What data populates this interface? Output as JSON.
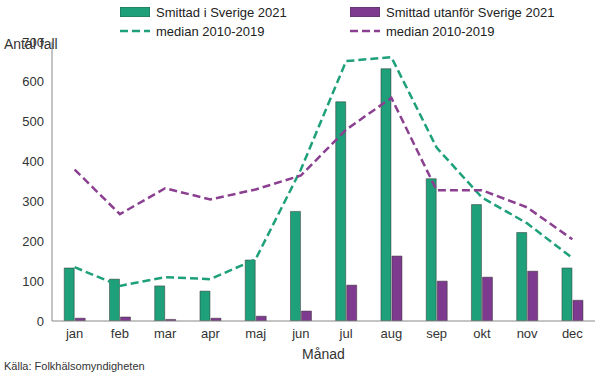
{
  "chart_data": {
    "type": "bar",
    "y_label": "Antal fall",
    "x_label": "Månad",
    "annotations": [
      "Källa: Folkhälsomyndigheten"
    ],
    "categories": [
      "jan",
      "feb",
      "mar",
      "apr",
      "maj",
      "jun",
      "jul",
      "aug",
      "sep",
      "okt",
      "nov",
      "dec"
    ],
    "series": [
      {
        "name": "Smittad i Sverige 2021",
        "type": "bar",
        "color": "#1ea07a",
        "values": [
          133,
          105,
          88,
          75,
          153,
          275,
          550,
          633,
          357,
          292,
          222,
          133
        ]
      },
      {
        "name": "Smittad utanför Sverige 2021",
        "type": "bar",
        "color": "#7e3a8e",
        "values": [
          7,
          10,
          4,
          7,
          12,
          25,
          90,
          163,
          100,
          110,
          125,
          52
        ]
      },
      {
        "name": "median 2010-2019",
        "type": "line",
        "line_style": "dashed",
        "color": "#1ea07a",
        "values": [
          135,
          88,
          110,
          105,
          155,
          380,
          652,
          662,
          435,
          310,
          245,
          158
        ]
      },
      {
        "name": "median 2010-2019",
        "type": "line",
        "line_style": "dashed",
        "color": "#8a3f90",
        "values": [
          380,
          268,
          333,
          305,
          330,
          365,
          480,
          560,
          328,
          328,
          285,
          205
        ]
      }
    ],
    "ylim": [
      0,
      700
    ],
    "yticks": [
      0,
      100,
      200,
      300,
      400,
      500,
      600,
      700
    ],
    "grid": false
  }
}
